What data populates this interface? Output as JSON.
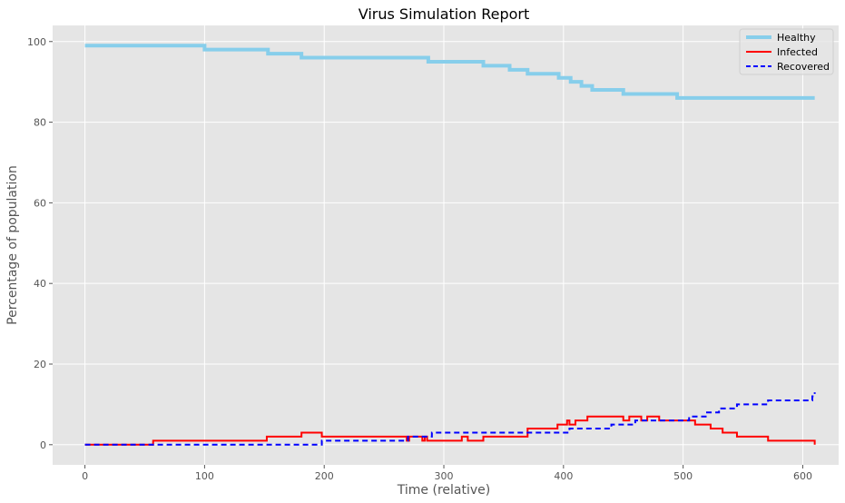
{
  "chart_data": {
    "type": "line",
    "title": "Virus Simulation Report",
    "xlabel": "Time (relative)",
    "ylabel": "Percentage of population",
    "xlim": [
      -27,
      630
    ],
    "ylim": [
      -5,
      104
    ],
    "xticks": [
      0,
      100,
      200,
      300,
      400,
      500,
      600
    ],
    "yticks": [
      0,
      20,
      40,
      60,
      80,
      100
    ],
    "grid": true,
    "legend_position": "top-right",
    "colors": {
      "plot_background": "#e5e5e5",
      "grid": "#ffffff",
      "healthy": "#87ceeb",
      "infected": "#ff0000",
      "recovered": "#0000ff"
    },
    "series": [
      {
        "name": "Healthy",
        "style": "solid-thick",
        "x": [
          0,
          100,
          153,
          181,
          287,
          333,
          355,
          370,
          396,
          406,
          415,
          424,
          450,
          495,
          610
        ],
        "y": [
          99,
          98,
          97,
          96,
          95,
          94,
          93,
          92,
          91,
          90,
          89,
          88,
          87,
          86,
          86
        ]
      },
      {
        "name": "Infected",
        "style": "solid",
        "x": [
          0,
          57,
          152,
          181,
          198,
          269,
          271,
          273,
          282,
          284,
          286,
          315,
          320,
          333,
          370,
          395,
          403,
          405,
          410,
          420,
          450,
          455,
          465,
          470,
          480,
          495,
          500,
          510,
          523,
          533,
          545,
          571,
          608,
          610
        ],
        "y": [
          0,
          1,
          2,
          3,
          2,
          1,
          2,
          2,
          1,
          2,
          1,
          2,
          1,
          2,
          4,
          5,
          6,
          5,
          6,
          7,
          6,
          7,
          6,
          7,
          6,
          6,
          6,
          5,
          4,
          3,
          2,
          1,
          1,
          0
        ]
      },
      {
        "name": "Recovered",
        "style": "dashed",
        "x": [
          0,
          198,
          270,
          290,
          370,
          405,
          440,
          460,
          495,
          505,
          520,
          530,
          545,
          571,
          608,
          610
        ],
        "y": [
          0,
          1,
          2,
          3,
          3,
          4,
          5,
          6,
          6,
          7,
          8,
          9,
          10,
          11,
          12,
          13
        ]
      }
    ]
  }
}
